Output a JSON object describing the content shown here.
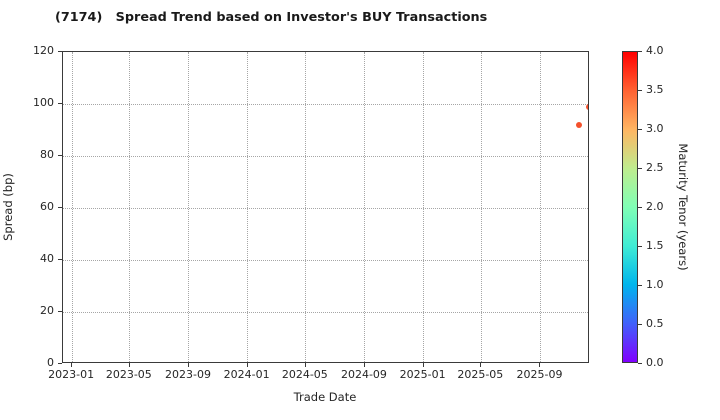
{
  "title": "(7174)   Spread Trend based on Investor's BUY Transactions",
  "chart_data": {
    "type": "scatter",
    "title": "(7174)   Spread Trend based on Investor's BUY Transactions",
    "xlabel": "Trade Date",
    "ylabel": "Spread (bp)",
    "xlim": [
      "2022-12-13",
      "2025-12-13"
    ],
    "ylim": [
      0,
      120
    ],
    "grid": true,
    "x_ticks": [
      {
        "date": "2023-01-01",
        "label": "2023-01"
      },
      {
        "date": "2023-05-01",
        "label": "2023-05"
      },
      {
        "date": "2023-09-01",
        "label": "2023-09"
      },
      {
        "date": "2024-01-01",
        "label": "2024-01"
      },
      {
        "date": "2024-05-01",
        "label": "2024-05"
      },
      {
        "date": "2024-09-01",
        "label": "2024-09"
      },
      {
        "date": "2025-01-01",
        "label": "2025-01"
      },
      {
        "date": "2025-05-01",
        "label": "2025-05"
      },
      {
        "date": "2025-09-01",
        "label": "2025-09"
      }
    ],
    "y_ticks": [
      0,
      20,
      40,
      60,
      80,
      100,
      120
    ],
    "points": [
      {
        "date": "2025-11-20",
        "spread": 92,
        "maturity_tenor": 3.5,
        "color": "#f4512c"
      },
      {
        "date": "2025-12-11",
        "spread": 99,
        "maturity_tenor": 3.5,
        "color": "#f4512c"
      }
    ],
    "colorbar": {
      "label": "Maturity Tenor (years)",
      "min": 0.0,
      "max": 4.0,
      "colormap": "rainbow",
      "tick_labels": [
        "4.0",
        "3.5",
        "3.0",
        "2.5",
        "2.0",
        "1.5",
        "1.0",
        "0.5",
        "0.0"
      ],
      "gradient_stops": [
        {
          "pos": 0.0,
          "color": "#8000ff"
        },
        {
          "pos": 0.125,
          "color": "#4061fa"
        },
        {
          "pos": 0.25,
          "color": "#00b5ec"
        },
        {
          "pos": 0.375,
          "color": "#40ecd4"
        },
        {
          "pos": 0.5,
          "color": "#80ffb5"
        },
        {
          "pos": 0.625,
          "color": "#bfec8e"
        },
        {
          "pos": 0.75,
          "color": "#ffb562"
        },
        {
          "pos": 0.875,
          "color": "#ff6232"
        },
        {
          "pos": 1.0,
          "color": "#ff0000"
        }
      ]
    }
  },
  "colors": {
    "spine": "#3a3a3a",
    "grid": "#a6a6a6",
    "title_text": "#1a1a1a",
    "tick_text": "#262626",
    "background": "#ffffff"
  }
}
